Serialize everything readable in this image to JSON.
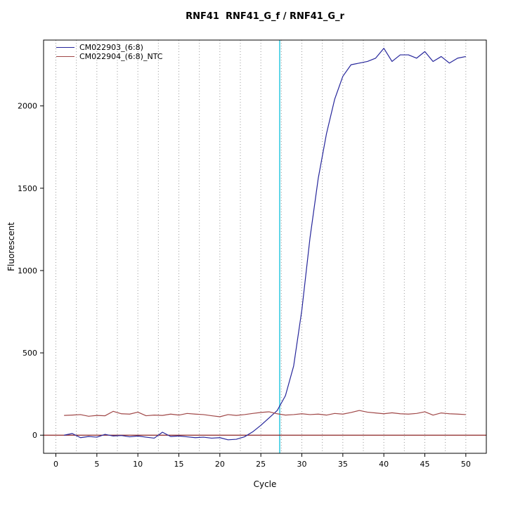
{
  "chart_data": {
    "type": "line",
    "title": "RNF41  RNF41_G_f / RNF41_G_r",
    "xlabel": "Cycle",
    "ylabel": "Fluorescent",
    "xlim": [
      -1.5,
      52.5
    ],
    "ylim": [
      -110,
      2400
    ],
    "xticks": [
      0,
      5,
      10,
      15,
      20,
      25,
      30,
      35,
      40,
      45,
      50
    ],
    "yticks": [
      0,
      500,
      1000,
      1500,
      2000
    ],
    "grid": {
      "x_start": 0,
      "x_end": 50,
      "x_step": 2.5,
      "style": "dotted",
      "color": "#999999"
    },
    "threshold_line": {
      "orientation": "vertical",
      "x": 27.3,
      "color": "#5fd6e8"
    },
    "baseline_line": {
      "orientation": "horizontal",
      "y": 0,
      "color": "#8b2424"
    },
    "legend_position": "top-left",
    "cycles": [
      1,
      2,
      3,
      4,
      5,
      6,
      7,
      8,
      9,
      10,
      11,
      12,
      13,
      14,
      15,
      16,
      17,
      18,
      19,
      20,
      21,
      22,
      23,
      24,
      25,
      26,
      27,
      28,
      29,
      30,
      31,
      32,
      33,
      34,
      35,
      36,
      37,
      38,
      39,
      40,
      41,
      42,
      43,
      44,
      45,
      46,
      47,
      48,
      49,
      50
    ],
    "series": [
      {
        "name": "CM022903_(6:8)",
        "color": "#26269b",
        "values": [
          0,
          10,
          -15,
          -8,
          -12,
          5,
          -5,
          -2,
          -10,
          -5,
          -12,
          -18,
          18,
          -8,
          -5,
          -10,
          -15,
          -12,
          -18,
          -15,
          -28,
          -25,
          -10,
          20,
          60,
          105,
          150,
          240,
          420,
          760,
          1200,
          1560,
          1830,
          2040,
          2180,
          2250,
          2260,
          2270,
          2290,
          2350,
          2270,
          2310,
          2310,
          2290,
          2330,
          2270,
          2300,
          2260,
          2290,
          2300
        ]
      },
      {
        "name": "CM022904_(6:8)_NTC",
        "color": "#a04848",
        "values": [
          120,
          122,
          125,
          115,
          120,
          118,
          145,
          130,
          128,
          140,
          118,
          122,
          120,
          128,
          122,
          132,
          128,
          125,
          118,
          112,
          125,
          120,
          125,
          132,
          138,
          142,
          130,
          122,
          125,
          130,
          125,
          128,
          122,
          132,
          128,
          138,
          150,
          140,
          135,
          130,
          136,
          130,
          128,
          132,
          142,
          122,
          135,
          130,
          128,
          125
        ]
      }
    ]
  }
}
